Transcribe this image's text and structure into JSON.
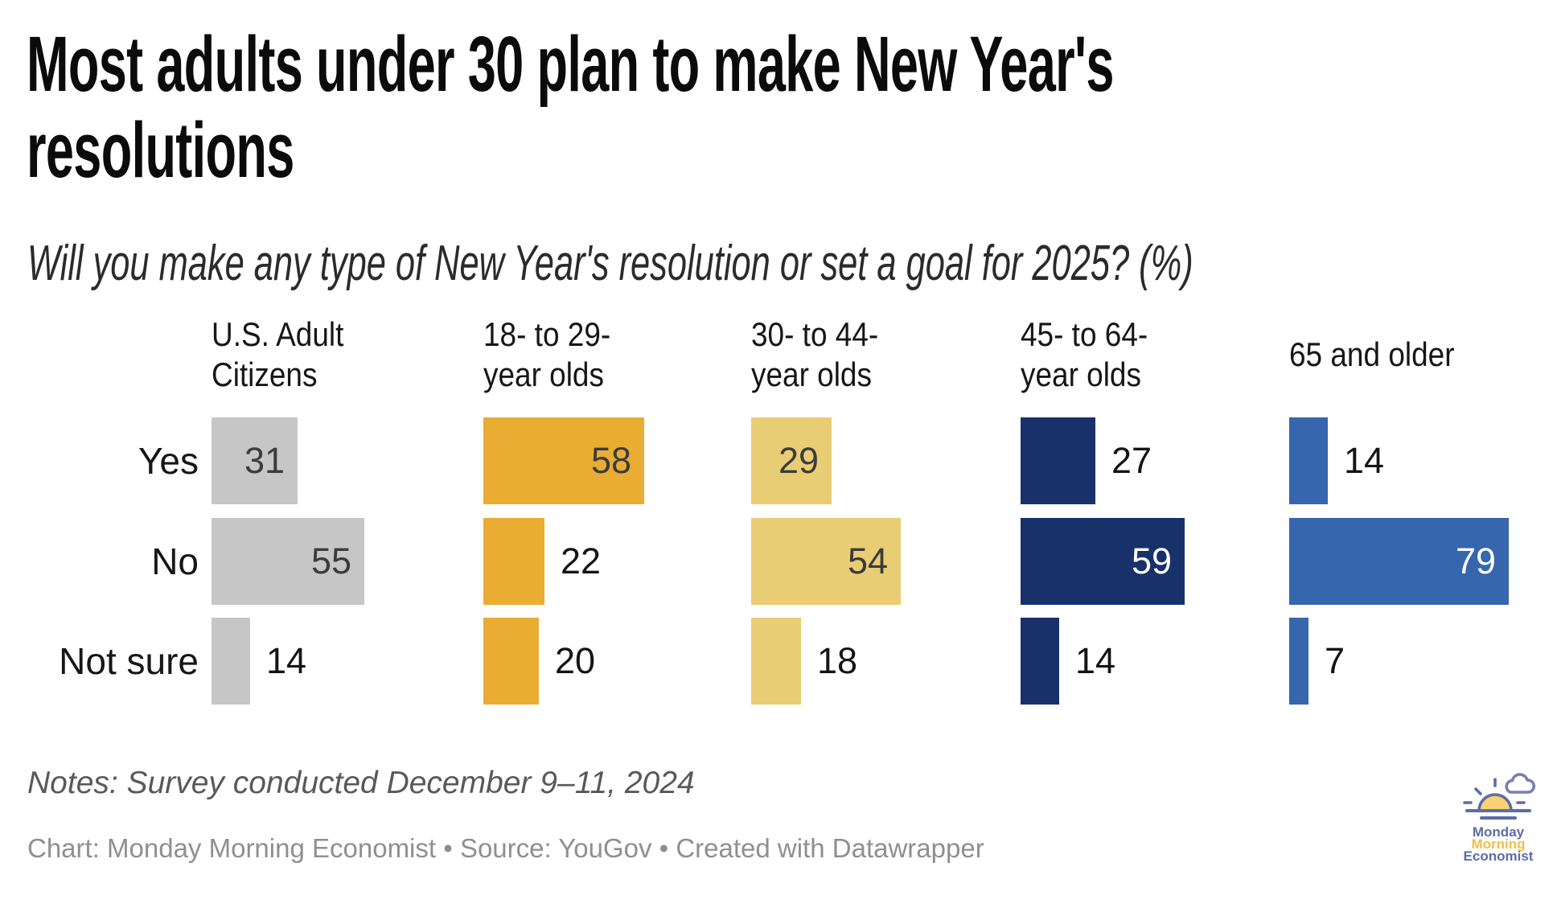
{
  "title": "Most adults under 30 plan to make New Year's\nresolutions",
  "subtitle": "Will you make any type of New Year's resolution or set a goal for 2025? (%)",
  "chart_data": {
    "type": "bar",
    "orientation": "horizontal",
    "title": "Most adults under 30 plan to make New Year's resolutions",
    "subtitle": "Will you make any type of New Year's resolution or set a goal for 2025? (%)",
    "unit": "%",
    "rows": [
      "Yes",
      "No",
      "Not sure"
    ],
    "series": [
      {
        "name": "U.S. Adult\nCitizens",
        "color": "#c6c6c6",
        "inside_label_color": "#3c3c3c",
        "values": [
          {
            "v": 31,
            "inside": true
          },
          {
            "v": 55,
            "inside": true
          },
          {
            "v": 14,
            "inside": false
          }
        ]
      },
      {
        "name": "18- to 29-\nyear olds",
        "color": "#e9ad33",
        "inside_label_color": "#3c3c3c",
        "values": [
          {
            "v": 58,
            "inside": true
          },
          {
            "v": 22,
            "inside": false
          },
          {
            "v": 20,
            "inside": false
          }
        ]
      },
      {
        "name": "30- to 44-\nyear olds",
        "color": "#e9cd74",
        "inside_label_color": "#3c3c3c",
        "values": [
          {
            "v": 29,
            "inside": true
          },
          {
            "v": 54,
            "inside": true
          },
          {
            "v": 18,
            "inside": false
          }
        ]
      },
      {
        "name": "45- to 64-\nyear olds",
        "color": "#18316a",
        "inside_label_color": "#ffffff",
        "values": [
          {
            "v": 27,
            "inside": false
          },
          {
            "v": 59,
            "inside": true
          },
          {
            "v": 14,
            "inside": false
          }
        ]
      },
      {
        "name": "65 and older",
        "color": "#3566ae",
        "inside_label_color": "#ffffff",
        "values": [
          {
            "v": 14,
            "inside": false
          },
          {
            "v": 79,
            "inside": true
          },
          {
            "v": 7,
            "inside": false
          }
        ]
      }
    ]
  },
  "footer": {
    "notes": "Notes: Survey conducted December 9–11, 2024",
    "credit": "Chart: Monday Morning Economist • Source: YouGov • Created with Datawrapper"
  },
  "logo": {
    "line1": "Monday",
    "line2": "Morning",
    "line3": "Economist",
    "text_color": "#5d6ca6",
    "accent_color": "#f0bf4a",
    "sun_fill": "#f9d271"
  }
}
